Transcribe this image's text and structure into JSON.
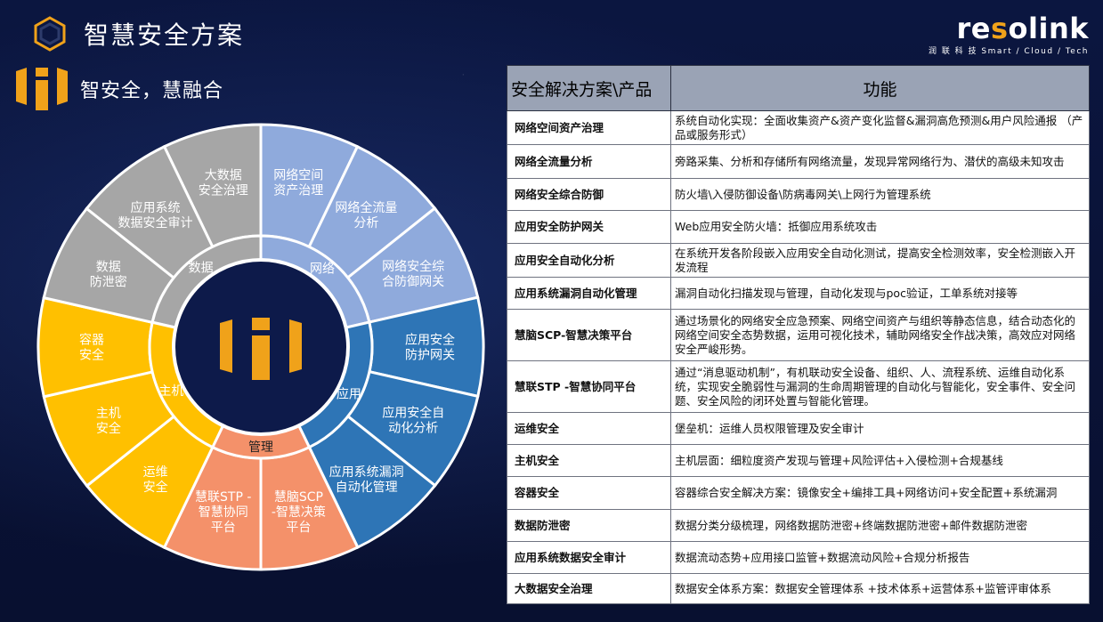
{
  "page": {
    "title": "智慧安全方案",
    "slogan": "智安全，慧融合"
  },
  "logo": {
    "wordmark_prefix": "re",
    "wordmark_accent": "s",
    "wordmark_suffix": "olink",
    "tagline": "润 联 科 技   Smart / Cloud / Tech"
  },
  "wheel": {
    "inner_segments": {
      "data": "数据",
      "network": "网络",
      "application": "应用",
      "management": "管理",
      "host": "主机"
    },
    "outer_segments": [
      {
        "label_1": "大数据",
        "label_2": "安全治理"
      },
      {
        "label_1": "网络空间",
        "label_2": "资产治理"
      },
      {
        "label_1": "网络全流量",
        "label_2": "分析"
      },
      {
        "label_1": "网络安全综",
        "label_2": "合防御网关"
      },
      {
        "label_1": "应用安全",
        "label_2": "防护网关"
      },
      {
        "label_1": "应用安全自",
        "label_2": "动化分析"
      },
      {
        "label_1": "应用系统漏洞",
        "label_2": "自动化管理"
      },
      {
        "label_1": "慧脑SCP",
        "label_2": "-智慧决策",
        "label_3": "平台"
      },
      {
        "label_1": "慧联STP -",
        "label_2": "智慧协同",
        "label_3": "平台"
      },
      {
        "label_1": "运维",
        "label_2": "安全"
      },
      {
        "label_1": "主机",
        "label_2": "安全"
      },
      {
        "label_1": "容器",
        "label_2": "安全"
      },
      {
        "label_1": "数据",
        "label_2": "防泄密"
      },
      {
        "label_1": "应用系统",
        "label_2": "数据安全审计"
      }
    ],
    "colors": {
      "data": "#a6a6a6",
      "network": "#8faadc",
      "application": "#2e75b6",
      "management": "#f4916a",
      "host": "#ffc000"
    }
  },
  "table": {
    "header": {
      "col1": "安全解决方案\\产品",
      "col2": "功能"
    },
    "rows": [
      {
        "name": "网络空间资产治理",
        "desc": "系统自动化实现：全面收集资产&资产变化监督&漏洞高危预测&用户风险通报 （产品或服务形式）"
      },
      {
        "name": "网络全流量分析",
        "desc": "旁路采集、分析和存储所有网络流量，发现异常网络行为、潜伏的高级未知攻击"
      },
      {
        "name": "网络安全综合防御",
        "desc": "防火墙\\入侵防御设备\\防病毒网关\\上网行为管理系统"
      },
      {
        "name": "应用安全防护网关",
        "desc": "Web应用安全防火墙：抵御应用系统攻击"
      },
      {
        "name": "应用安全自动化分析",
        "desc": "在系统开发各阶段嵌入应用安全自动化测试，提高安全检测效率，安全检测嵌入开发流程"
      },
      {
        "name": "应用系统漏洞自动化管理",
        "desc": "漏洞自动化扫描发现与管理，自动化发现与poc验证，工单系统对接等"
      },
      {
        "name": "慧脑SCP-智慧决策平台",
        "desc": "通过场景化的网络安全应急预案、网络空间资产与组织等静态信息，结合动态化的网络空间安全态势数据，运用可视化技术，辅助网络安全作战决策，高效应对网络安全严峻形势。"
      },
      {
        "name": "慧联STP -智慧协同平台",
        "desc": "通过“消息驱动机制”，有机联动安全设备、组织、人、流程系统、运维自动化系统，实现安全脆弱性与漏洞的生命周期管理的自动化与智能化，安全事件、安全问题、安全风险的闭环处置与智能化管理。"
      },
      {
        "name": "运维安全",
        "desc": "堡垒机：运维人员权限管理及安全审计"
      },
      {
        "name": "主机安全",
        "desc": "主机层面：细粒度资产发现与管理+风险评估+入侵检测+合规基线"
      },
      {
        "name": "容器安全",
        "desc": "容器综合安全解决方案：镜像安全+编排工具+网络访问+安全配置+系统漏洞"
      },
      {
        "name": "数据防泄密",
        "desc": "数据分类分级梳理，网络数据防泄密+终端数据防泄密+邮件数据防泄密"
      },
      {
        "name": "应用系统数据安全审计",
        "desc": "数据流动态势+应用接口监管+数据流动风险+合规分析报告"
      },
      {
        "name": "大数据安全治理",
        "desc": "数据安全体系方案：数据安全管理体系 +技术体系+运营体系+监管评审体系"
      }
    ]
  }
}
